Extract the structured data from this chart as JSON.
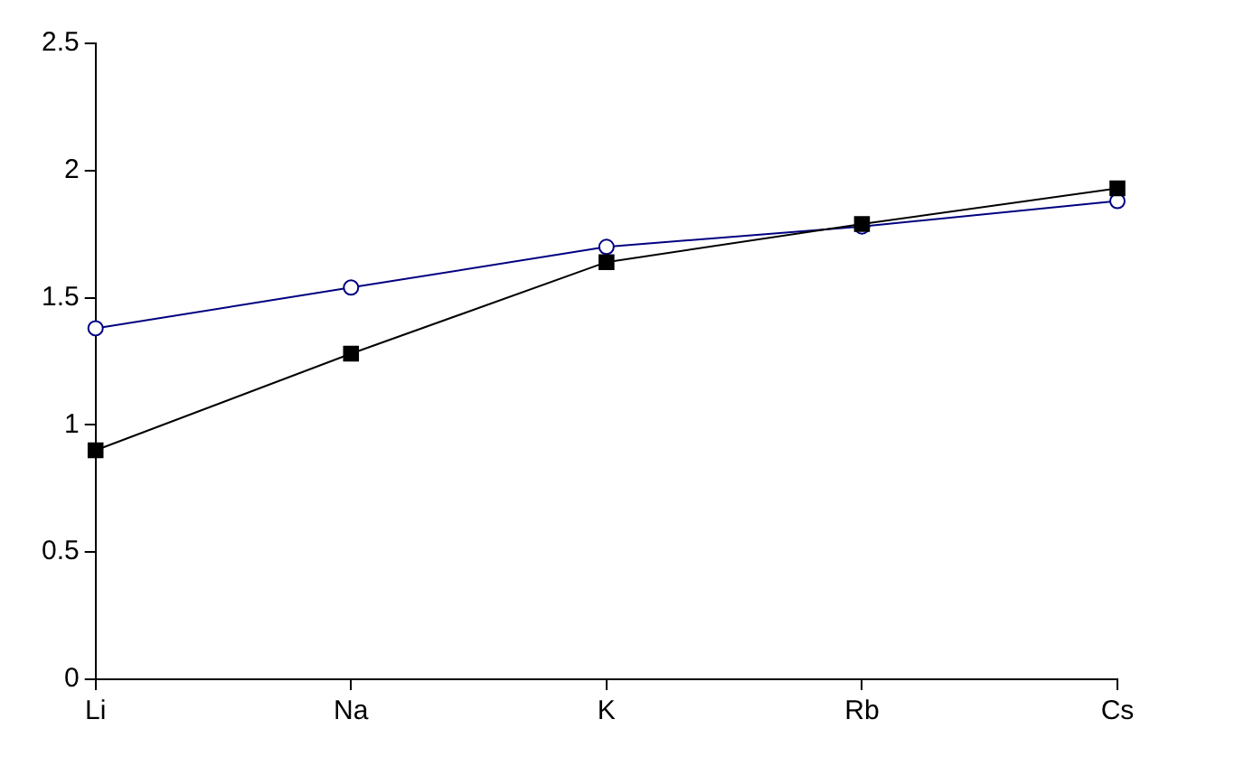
{
  "chart_data": {
    "type": "line",
    "categories": [
      "Li",
      "Na",
      "K",
      "Rb",
      "Cs"
    ],
    "series": [
      {
        "color": "#000080",
        "marker": "circle",
        "values": [
          1.38,
          1.54,
          1.7,
          1.78,
          1.88
        ]
      },
      {
        "color": "#000000",
        "marker": "square",
        "values": [
          0.9,
          1.28,
          1.64,
          1.79,
          1.93
        ]
      }
    ],
    "ylim": [
      0,
      2.5
    ],
    "yticks": [
      0,
      0.5,
      1,
      1.5,
      2,
      2.5
    ],
    "grid": false,
    "legend": false
  }
}
